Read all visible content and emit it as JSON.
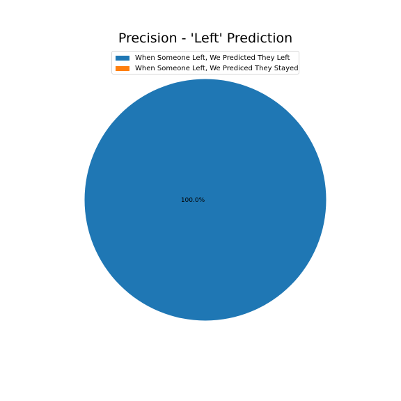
{
  "chart_data": {
    "type": "pie",
    "title": "Precision - 'Left' Prediction",
    "legend_position": "top-center",
    "slices": [
      {
        "label": "When Someone Left, We Predicted They Left",
        "value": 100.0,
        "pct_label": "100.0%",
        "color": "#1f77b4"
      },
      {
        "label": "When Someone Left, We Prediced They Stayed",
        "value": 0.0,
        "pct_label": "",
        "color": "#ff7f0e"
      }
    ]
  }
}
